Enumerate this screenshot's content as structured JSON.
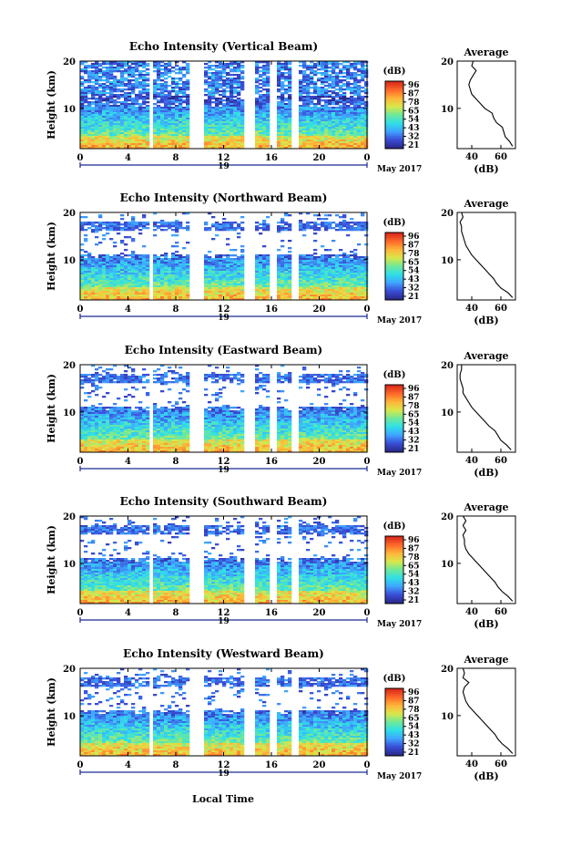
{
  "colors": {
    "colormap": [
      "#2a2a8c",
      "#3a4fd8",
      "#3fa6ff",
      "#2fe0e6",
      "#6fe89a",
      "#d8e84a",
      "#ffb63a",
      "#ff6a2a",
      "#d82a1a"
    ],
    "axis": "#000000",
    "date_marker": "#1b2a8f"
  },
  "common": {
    "ylabel": "Height (km)",
    "yticks": [
      10,
      20
    ],
    "xticks": [
      "0",
      "4",
      "8",
      "12",
      "16",
      "20",
      "0"
    ],
    "date_label": "19",
    "month_label": "May 2017",
    "cbar_label": "(dB)",
    "cbar_ticks": [
      "96",
      "87",
      "78",
      "65",
      "54",
      "43",
      "32",
      "21"
    ],
    "avg_title": "Average",
    "avg_xlabel": "(dB)",
    "xlabel_bottom": "Local Time"
  },
  "chart_data": [
    {
      "type": "heatmap",
      "title": "Echo Intensity (Vertical Beam)",
      "xlabel": "",
      "ylabel": "Height (km)",
      "x_range_hours": [
        0,
        24
      ],
      "ylim": [
        1.5,
        20
      ],
      "clim_db": [
        21,
        96
      ],
      "data_gaps_hours": [
        [
          5.8,
          6.0
        ],
        [
          9.4,
          10.3
        ],
        [
          13.9,
          14.5
        ],
        [
          15.9,
          16.4
        ],
        [
          17.8,
          18.2
        ]
      ],
      "echo_top_km": 20,
      "average_profile": {
        "xticks": [
          "40",
          "60"
        ],
        "xlim": [
          30,
          70
        ],
        "height_km": [
          2,
          3,
          4,
          5,
          6,
          7,
          8,
          9,
          10,
          11,
          12,
          13,
          14,
          15,
          16,
          17,
          18,
          19,
          20
        ],
        "db": [
          68,
          66,
          63,
          62,
          61,
          57,
          55,
          54,
          49,
          46,
          43,
          40,
          39,
          38,
          39,
          41,
          43,
          40,
          41
        ]
      }
    },
    {
      "type": "heatmap",
      "title": "Echo Intensity (Northward Beam)",
      "xlabel": "",
      "ylabel": "Height (km)",
      "x_range_hours": [
        0,
        24
      ],
      "ylim": [
        1.5,
        20
      ],
      "clim_db": [
        21,
        96
      ],
      "data_gaps_hours": [
        [
          5.8,
          6.0
        ],
        [
          9.4,
          10.3
        ],
        [
          13.9,
          14.5
        ],
        [
          15.9,
          16.4
        ],
        [
          17.8,
          18.2
        ]
      ],
      "echo_top_km": 12,
      "average_profile": {
        "xticks": [
          "40",
          "60"
        ],
        "xlim": [
          30,
          70
        ],
        "height_km": [
          2,
          3,
          4,
          5,
          6,
          7,
          8,
          9,
          10,
          11,
          12,
          13,
          14,
          15,
          16,
          17,
          18,
          19,
          20
        ],
        "db": [
          68,
          65,
          60,
          57,
          55,
          52,
          49,
          46,
          43,
          40,
          38,
          36,
          35,
          34,
          33,
          33,
          32,
          34,
          33
        ]
      }
    },
    {
      "type": "heatmap",
      "title": "Echo Intensity (Eastward Beam)",
      "xlabel": "",
      "ylabel": "Height (km)",
      "x_range_hours": [
        0,
        24
      ],
      "ylim": [
        1.5,
        20
      ],
      "clim_db": [
        21,
        96
      ],
      "data_gaps_hours": [
        [
          5.8,
          6.0
        ],
        [
          9.4,
          10.3
        ],
        [
          13.9,
          14.5
        ],
        [
          15.9,
          16.4
        ],
        [
          17.8,
          18.2
        ]
      ],
      "echo_top_km": 12,
      "average_profile": {
        "xticks": [
          "40",
          "60"
        ],
        "xlim": [
          30,
          70
        ],
        "height_km": [
          2,
          3,
          4,
          5,
          6,
          7,
          8,
          9,
          10,
          11,
          12,
          13,
          14,
          15,
          16,
          17,
          18,
          19,
          20
        ],
        "db": [
          67,
          64,
          60,
          58,
          56,
          52,
          49,
          46,
          43,
          40,
          38,
          36,
          34,
          34,
          33,
          32,
          32,
          33,
          33
        ]
      }
    },
    {
      "type": "heatmap",
      "title": "Echo Intensity (Southward Beam)",
      "xlabel": "",
      "ylabel": "Height (km)",
      "x_range_hours": [
        0,
        24
      ],
      "ylim": [
        1.5,
        20
      ],
      "clim_db": [
        21,
        96
      ],
      "data_gaps_hours": [
        [
          5.8,
          6.0
        ],
        [
          9.4,
          10.3
        ],
        [
          13.9,
          14.5
        ],
        [
          15.9,
          16.4
        ],
        [
          17.8,
          18.2
        ]
      ],
      "echo_top_km": 12,
      "average_profile": {
        "xticks": [
          "40",
          "60"
        ],
        "xlim": [
          30,
          70
        ],
        "height_km": [
          2,
          3,
          4,
          5,
          6,
          7,
          8,
          9,
          10,
          11,
          12,
          13,
          14,
          15,
          16,
          17,
          18,
          19,
          20
        ],
        "db": [
          68,
          65,
          61,
          58,
          56,
          53,
          50,
          47,
          44,
          41,
          38,
          36,
          35,
          35,
          34,
          36,
          34,
          36,
          34
        ]
      }
    },
    {
      "type": "heatmap",
      "title": "Echo Intensity (Westward Beam)",
      "xlabel": "Local Time",
      "ylabel": "Height (km)",
      "x_range_hours": [
        0,
        24
      ],
      "ylim": [
        1.5,
        20
      ],
      "clim_db": [
        21,
        96
      ],
      "data_gaps_hours": [
        [
          5.8,
          6.0
        ],
        [
          9.4,
          10.3
        ],
        [
          13.9,
          14.5
        ],
        [
          15.9,
          16.4
        ],
        [
          17.8,
          18.2
        ]
      ],
      "echo_top_km": 12,
      "average_profile": {
        "xticks": [
          "40",
          "60"
        ],
        "xlim": [
          30,
          70
        ],
        "height_km": [
          2,
          3,
          4,
          5,
          6,
          7,
          8,
          9,
          10,
          11,
          12,
          13,
          14,
          15,
          16,
          17,
          18,
          19,
          20
        ],
        "db": [
          68,
          65,
          61,
          58,
          56,
          53,
          50,
          47,
          44,
          41,
          38,
          36,
          35,
          34,
          35,
          38,
          34,
          35,
          34
        ]
      }
    }
  ]
}
